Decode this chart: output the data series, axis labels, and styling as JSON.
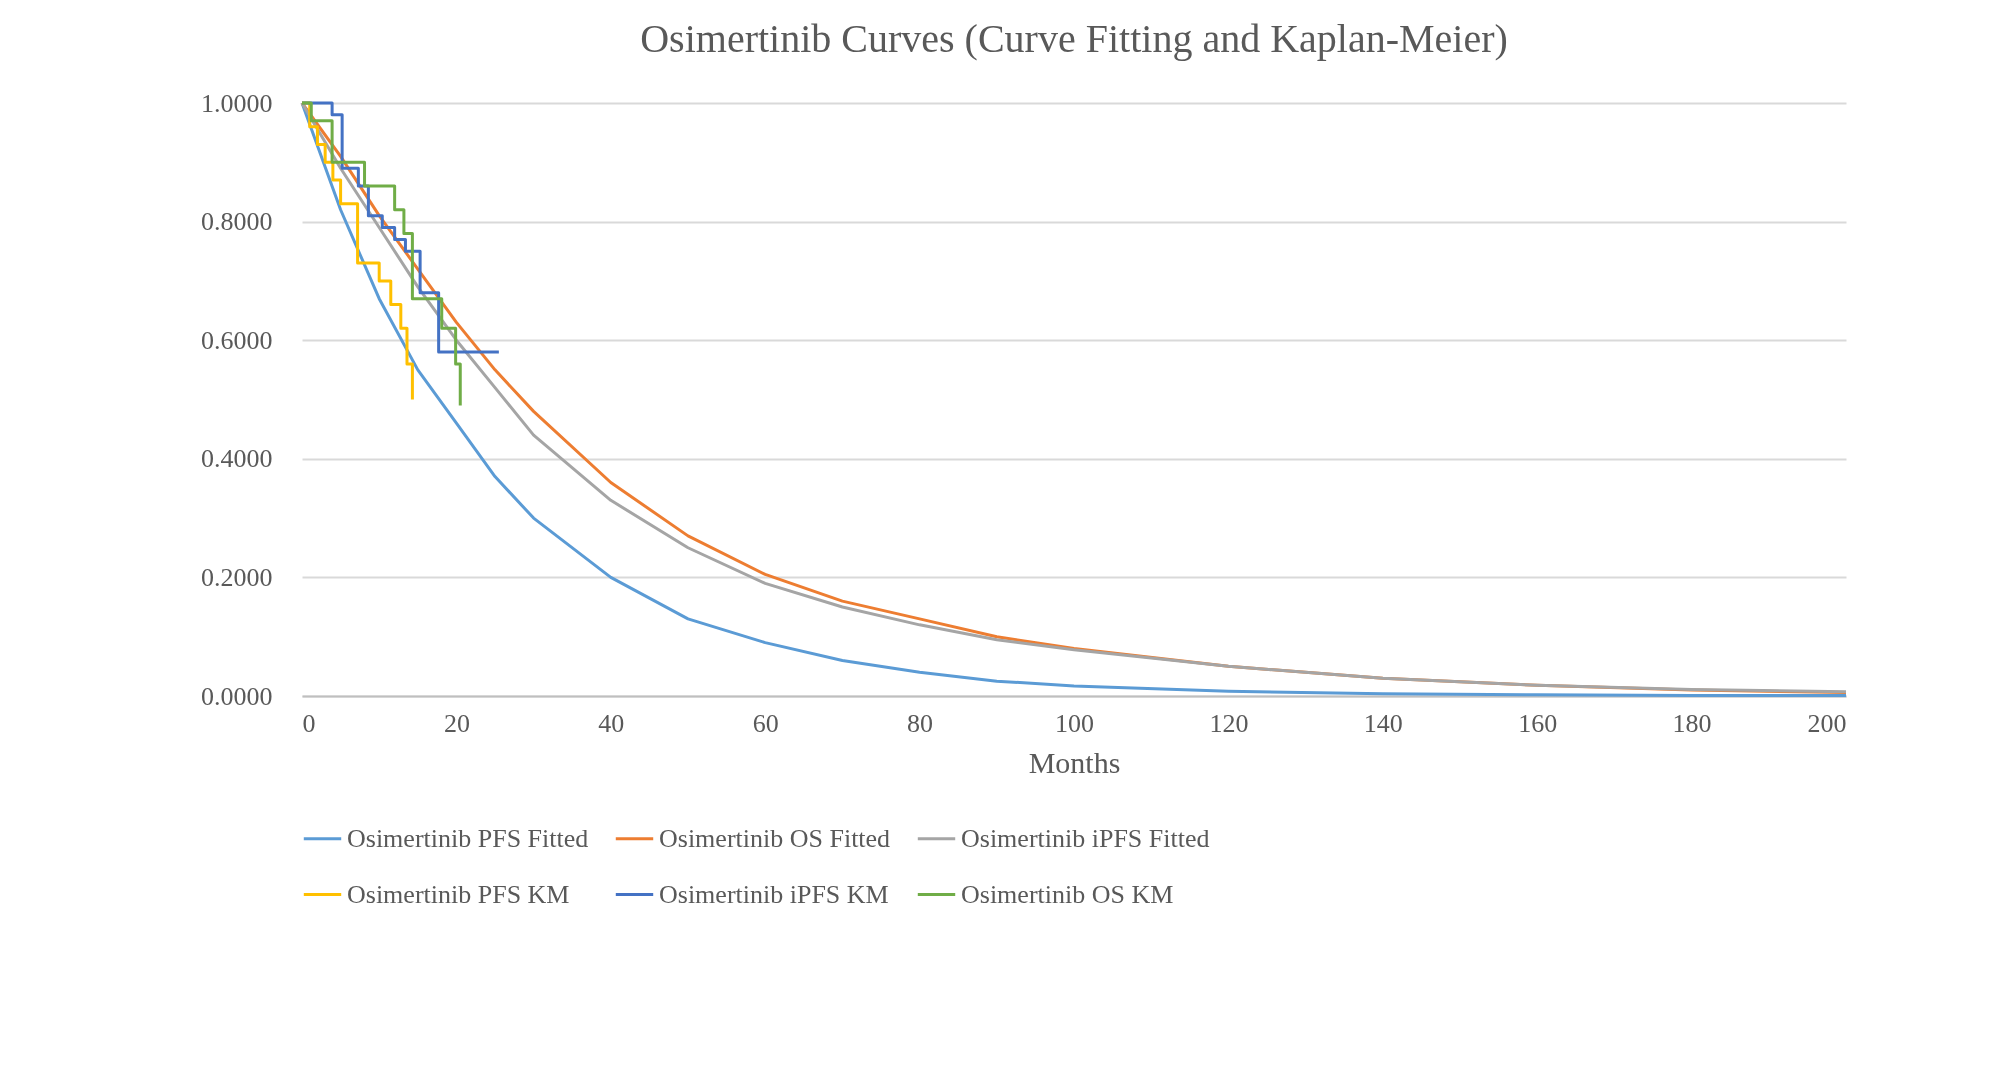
{
  "chart_data": {
    "type": "line",
    "title": "Osimertinib Curves (Curve Fitting and Kaplan-Meier)",
    "xlabel": "Months",
    "xlim": [
      0,
      200
    ],
    "xticks": [
      0,
      20,
      40,
      60,
      80,
      100,
      120,
      140,
      160,
      180,
      200
    ],
    "ylim": [
      0,
      1
    ],
    "yticks": [
      {
        "value": 0,
        "label": "0.0000"
      },
      {
        "value": 0.2,
        "label": "0.2000"
      },
      {
        "value": 0.4,
        "label": "0.4000"
      },
      {
        "value": 0.6,
        "label": "0.6000"
      },
      {
        "value": 0.8,
        "label": "0.8000"
      },
      {
        "value": 1,
        "label": "1.0000"
      }
    ],
    "grid": "y",
    "legend": "bottom",
    "marker": "none",
    "line_style": "solid",
    "series": [
      {
        "name": "Osimertinib PFS Fitted",
        "color": "#5b9bd5",
        "x": [
          0,
          5,
          10,
          15,
          20,
          25,
          30,
          40,
          50,
          60,
          70,
          80,
          90,
          100,
          120,
          140,
          160,
          180,
          200
        ],
        "values": [
          1,
          0.82,
          0.67,
          0.55,
          0.46,
          0.37,
          0.3,
          0.2,
          0.13,
          0.09,
          0.06,
          0.04,
          0.025,
          0.017,
          0.008,
          0.004,
          0.002,
          0.001,
          0.001
        ]
      },
      {
        "name": "Osimertinib OS Fitted",
        "color": "#ed7d31",
        "x": [
          0,
          5,
          10,
          15,
          20,
          25,
          30,
          40,
          50,
          60,
          70,
          80,
          90,
          100,
          120,
          140,
          160,
          180,
          200
        ],
        "values": [
          1,
          0.91,
          0.81,
          0.72,
          0.63,
          0.55,
          0.48,
          0.36,
          0.27,
          0.205,
          0.16,
          0.13,
          0.1,
          0.08,
          0.05,
          0.03,
          0.018,
          0.01,
          0.006
        ]
      },
      {
        "name": "Osimertinib iPFS Fitted",
        "color": "#a5a5a5",
        "x": [
          0,
          5,
          10,
          15,
          20,
          25,
          30,
          40,
          50,
          60,
          70,
          80,
          90,
          100,
          120,
          140,
          160,
          180,
          200
        ],
        "values": [
          1,
          0.89,
          0.79,
          0.69,
          0.6,
          0.52,
          0.44,
          0.33,
          0.25,
          0.19,
          0.15,
          0.12,
          0.095,
          0.078,
          0.05,
          0.03,
          0.018,
          0.011,
          0.007
        ]
      },
      {
        "name": "Osimertinib PFS KM",
        "type": "step",
        "color": "#ffc000",
        "x": [
          0,
          1,
          2,
          3,
          4,
          5,
          7.2,
          10,
          11.5,
          12.8,
          13.6,
          14.3
        ],
        "values": [
          1,
          0.96,
          0.93,
          0.9,
          0.87,
          0.83,
          0.73,
          0.7,
          0.66,
          0.62,
          0.56,
          0.5
        ]
      },
      {
        "name": "Osimertinib iPFS KM",
        "type": "step",
        "color": "#4472c4",
        "x": [
          0,
          3.9,
          5.2,
          7.3,
          8.6,
          10.4,
          12,
          13.4,
          15.3,
          17.7,
          25.5
        ],
        "values": [
          1,
          0.98,
          0.89,
          0.86,
          0.81,
          0.79,
          0.77,
          0.75,
          0.68,
          0.58,
          0.58
        ]
      },
      {
        "name": "Osimertinib OS KM",
        "type": "step",
        "color": "#70ad47",
        "x": [
          0,
          1.2,
          3.9,
          8.1,
          12,
          13.2,
          14.3,
          18.1,
          19.9,
          20.5
        ],
        "values": [
          1,
          0.97,
          0.9,
          0.86,
          0.82,
          0.78,
          0.67,
          0.62,
          0.56,
          0.49
        ]
      }
    ]
  }
}
